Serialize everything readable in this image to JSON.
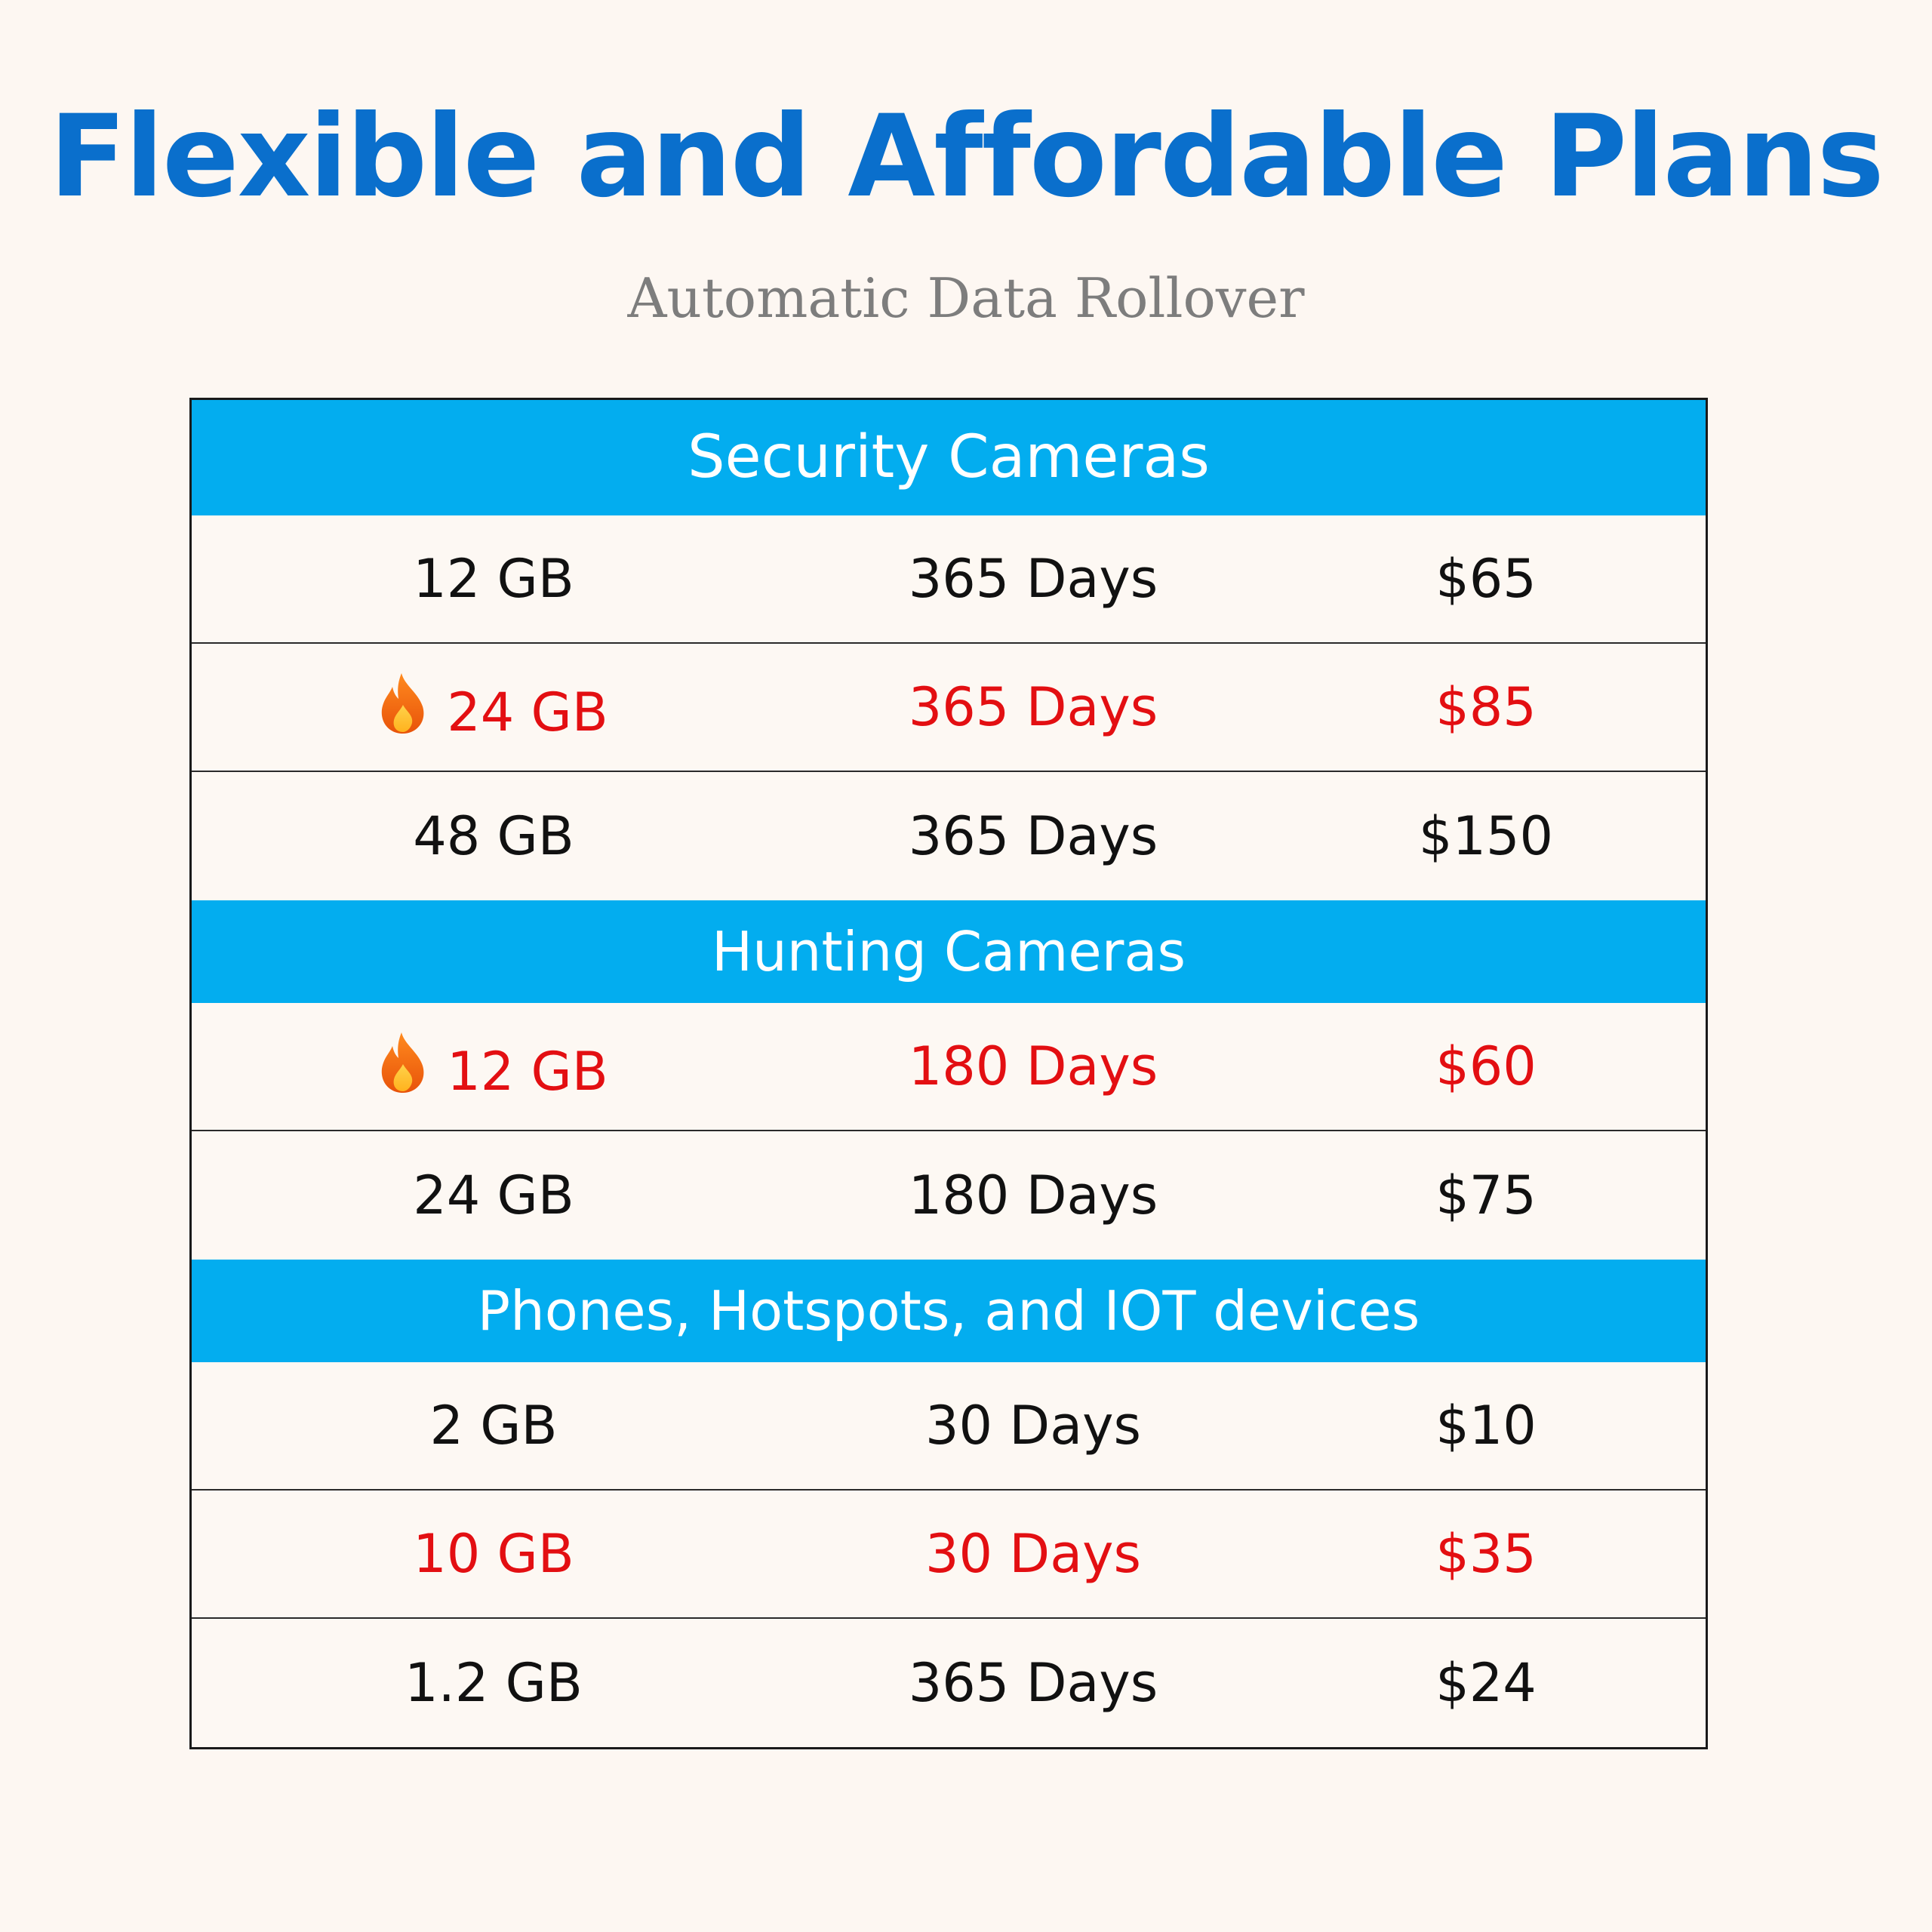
{
  "title": "Flexible and Affordable Plans",
  "subtitle": "Automatic Data Rollover",
  "colors": {
    "title": "#0a6fcc",
    "section_header_bg": "#03adef",
    "highlight_text": "#e30f12",
    "normal_text": "#111111",
    "background": "#fdf7f2"
  },
  "sections": [
    {
      "name": "Security Cameras",
      "rows": [
        {
          "data": "12 GB",
          "duration": "365 Days",
          "price": "$65",
          "highlight": false,
          "icon": ""
        },
        {
          "data": "24 GB",
          "duration": "365 Days",
          "price": "$85",
          "highlight": true,
          "icon": "fire-icon"
        },
        {
          "data": "48 GB",
          "duration": "365 Days",
          "price": "$150",
          "highlight": false,
          "icon": ""
        }
      ]
    },
    {
      "name": "Hunting Cameras",
      "rows": [
        {
          "data": "12 GB",
          "duration": "180 Days",
          "price": "$60",
          "highlight": true,
          "icon": "fire-icon"
        },
        {
          "data": "24 GB",
          "duration": "180 Days",
          "price": "$75",
          "highlight": false,
          "icon": ""
        }
      ]
    },
    {
      "name": "Phones, Hotspots, and IOT devices",
      "rows": [
        {
          "data": "2 GB",
          "duration": "30 Days",
          "price": "$10",
          "highlight": false,
          "icon": ""
        },
        {
          "data": "10 GB",
          "duration": "30 Days",
          "price": "$35",
          "highlight": true,
          "icon": ""
        },
        {
          "data": "1.2 GB",
          "duration": "365 Days",
          "price": "$24",
          "highlight": false,
          "icon": ""
        }
      ]
    }
  ]
}
